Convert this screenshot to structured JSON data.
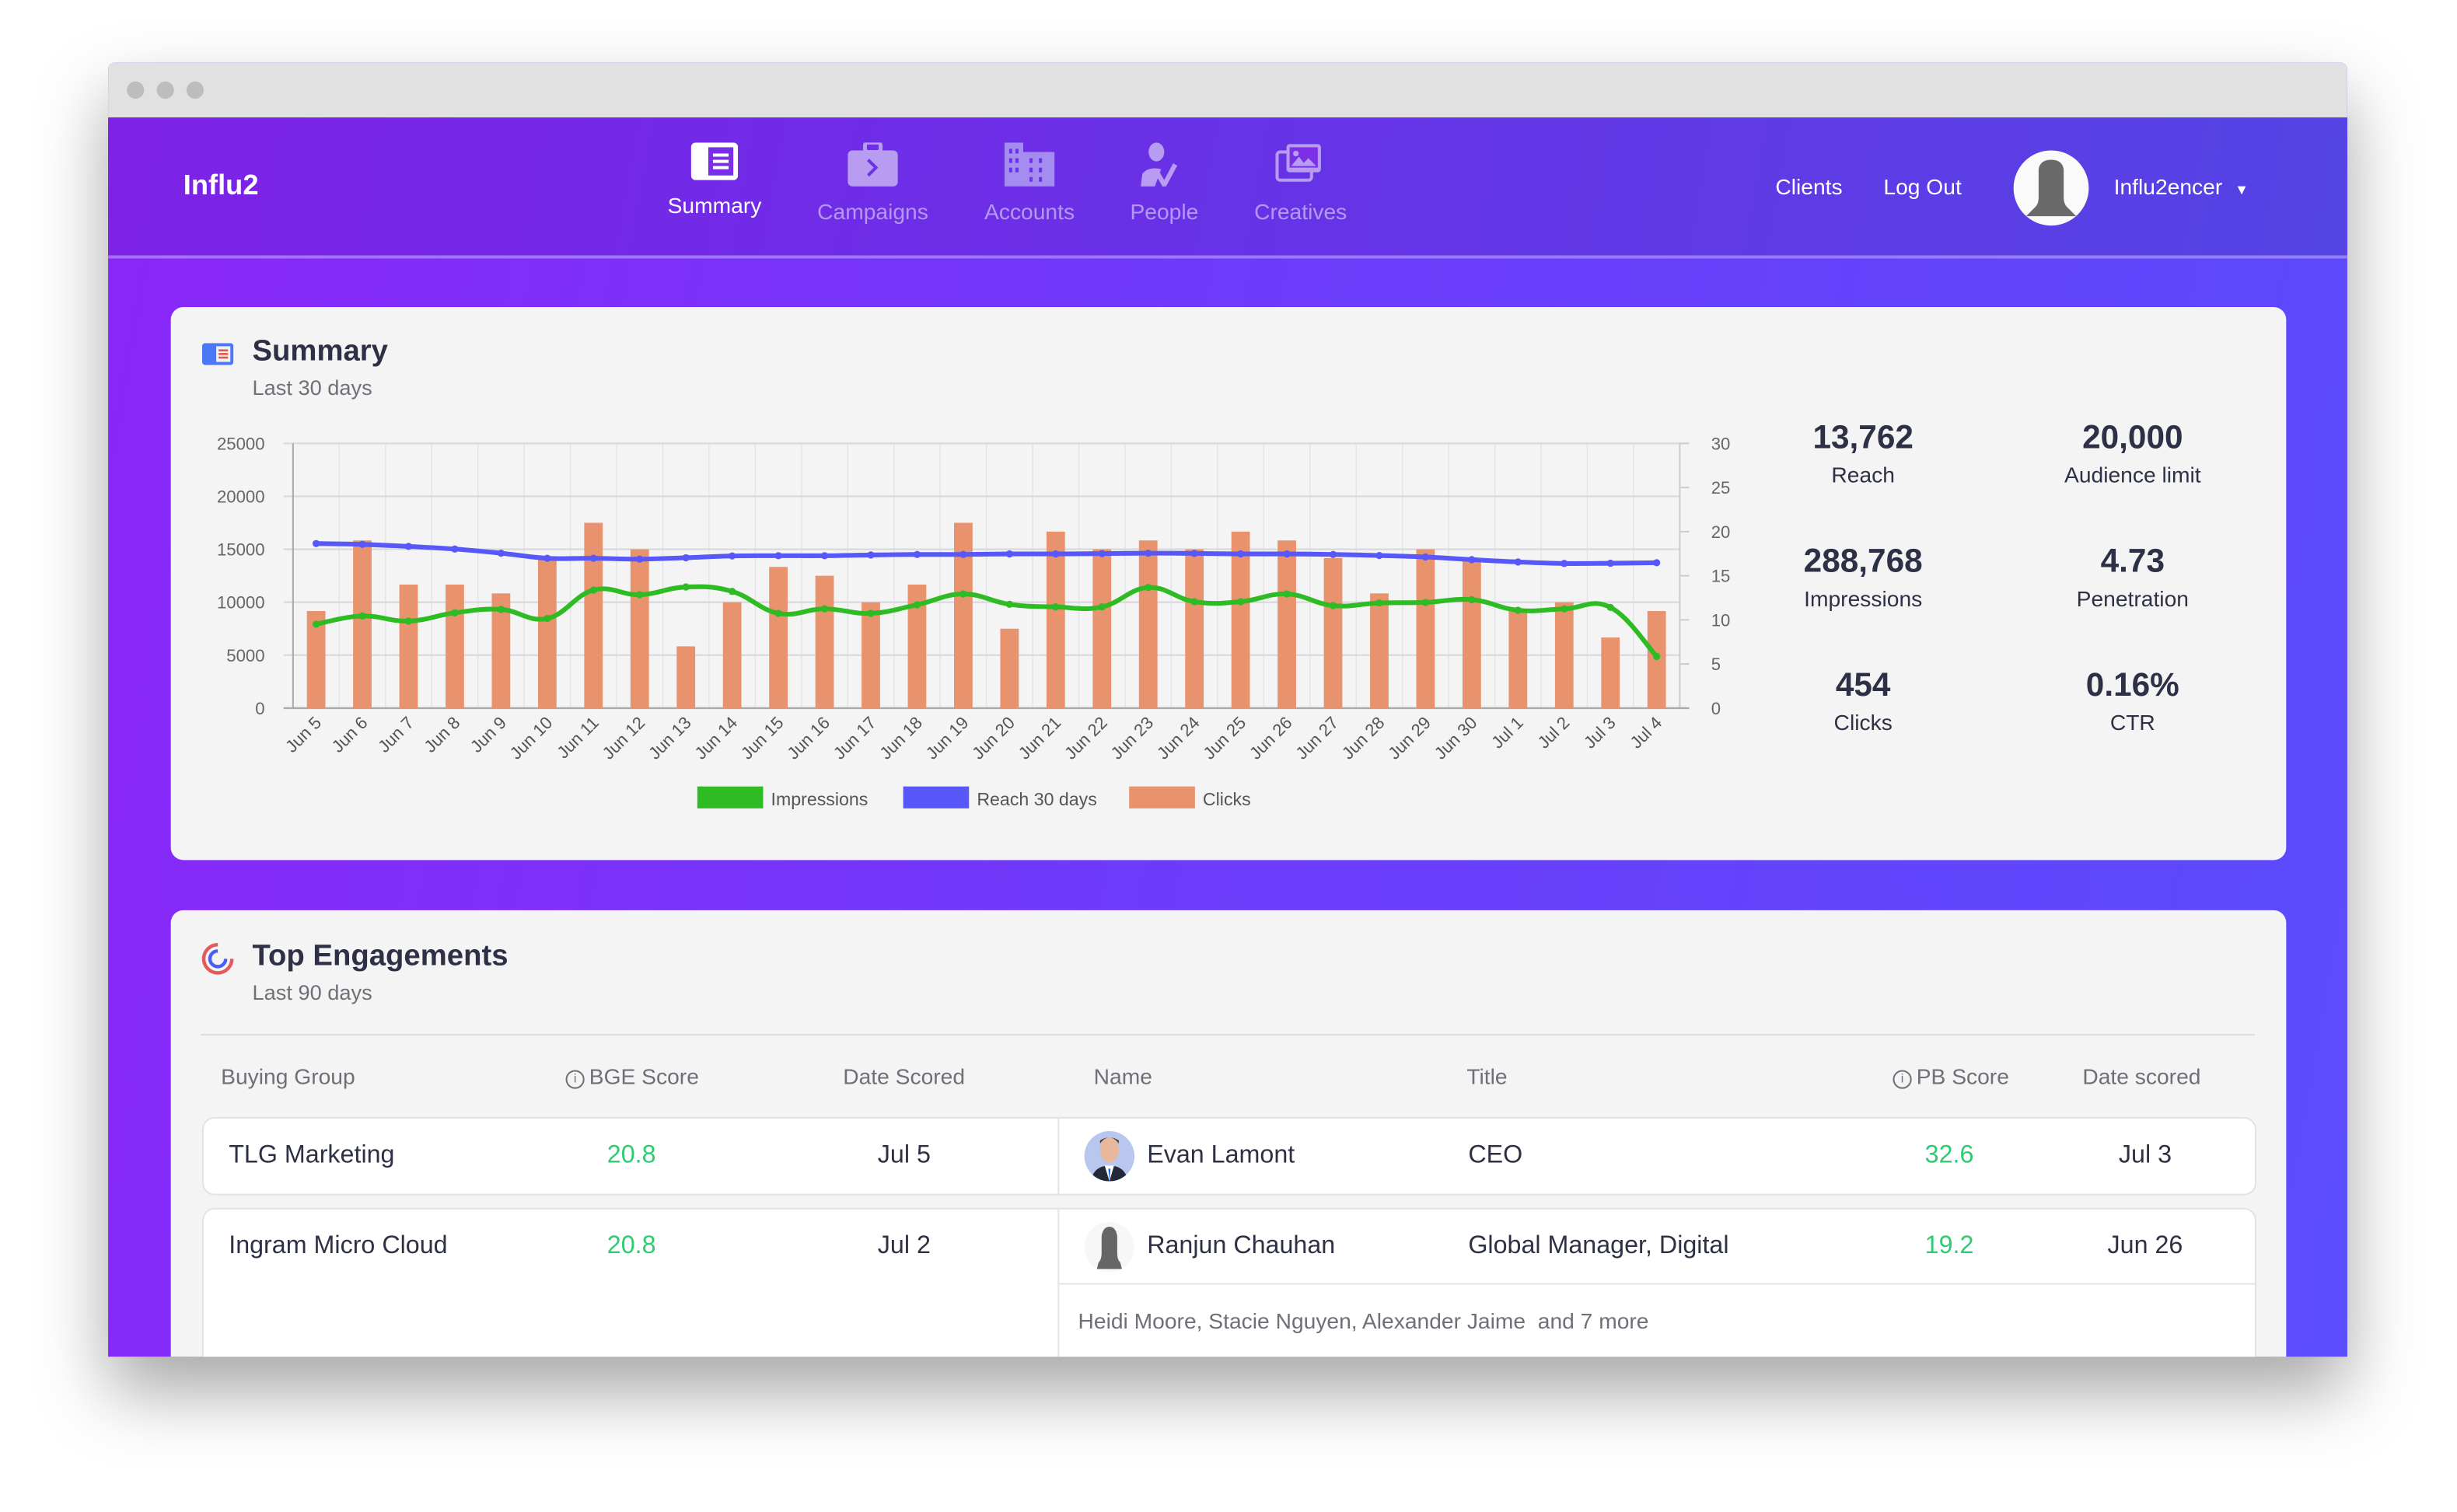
{
  "nav": {
    "logo": "Influ2",
    "items": [
      {
        "label": "Summary",
        "icon": "summary-icon",
        "active": true
      },
      {
        "label": "Campaigns",
        "icon": "briefcase-icon",
        "active": false
      },
      {
        "label": "Accounts",
        "icon": "building-icon",
        "active": false
      },
      {
        "label": "People",
        "icon": "person-check-icon",
        "active": false
      },
      {
        "label": "Creatives",
        "icon": "images-icon",
        "active": false
      }
    ],
    "clients": "Clients",
    "logout": "Log Out",
    "user": "Influ2encer"
  },
  "summary": {
    "title": "Summary",
    "subtitle": "Last 30 days",
    "stats": [
      {
        "value": "13,762",
        "label": "Reach"
      },
      {
        "value": "20,000",
        "label": "Audience limit"
      },
      {
        "value": "288,768",
        "label": "Impressions"
      },
      {
        "value": "4.73",
        "label": "Penetration"
      },
      {
        "value": "454",
        "label": "Clicks"
      },
      {
        "value": "0.16%",
        "label": "CTR"
      }
    ]
  },
  "chart_data": {
    "type": "bar",
    "categories": [
      "Jun 5",
      "Jun 6",
      "Jun 7",
      "Jun 8",
      "Jun 9",
      "Jun 10",
      "Jun 11",
      "Jun 12",
      "Jun 13",
      "Jun 14",
      "Jun 15",
      "Jun 16",
      "Jun 17",
      "Jun 18",
      "Jun 19",
      "Jun 20",
      "Jun 21",
      "Jun 22",
      "Jun 23",
      "Jun 24",
      "Jun 25",
      "Jun 26",
      "Jun 27",
      "Jun 28",
      "Jun 29",
      "Jun 30",
      "Jul 1",
      "Jul 2",
      "Jul 3",
      "Jul 4"
    ],
    "left_axis": {
      "ylim": [
        0,
        25000
      ],
      "ticks": [
        "25000",
        "20000",
        "15000",
        "10000",
        "5000",
        "0"
      ]
    },
    "right_axis": {
      "ylim": [
        0,
        30
      ],
      "ticks": [
        "30",
        "25",
        "20",
        "15",
        "10",
        "5",
        "0"
      ]
    },
    "grid": true,
    "legend_position": "bottom",
    "series": [
      {
        "name": "Impressions",
        "type": "line",
        "axis": "left",
        "color": "#2fbb23",
        "values": [
          7930,
          8700,
          8220,
          9000,
          9320,
          8460,
          11150,
          10710,
          11440,
          11020,
          8950,
          9370,
          8950,
          9760,
          10780,
          9800,
          9560,
          9560,
          11390,
          10050,
          10050,
          10780,
          9680,
          9930,
          9980,
          10240,
          9240,
          9370,
          9510,
          4880
        ]
      },
      {
        "name": "Reach 30 days",
        "type": "line",
        "axis": "left",
        "color": "#5858f8",
        "values": [
          15540,
          15460,
          15270,
          15020,
          14630,
          14150,
          14150,
          14070,
          14200,
          14370,
          14390,
          14390,
          14460,
          14510,
          14510,
          14560,
          14560,
          14590,
          14630,
          14610,
          14560,
          14560,
          14510,
          14410,
          14270,
          14020,
          13800,
          13660,
          13680,
          13730
        ]
      },
      {
        "name": "Clicks",
        "type": "bar",
        "axis": "right",
        "color": "#e8926e",
        "values": [
          11,
          19,
          14,
          14,
          13,
          17,
          21,
          18,
          7,
          12,
          16,
          15,
          12,
          14,
          21,
          9,
          20,
          18,
          19,
          18,
          20,
          19,
          17,
          13,
          18,
          17,
          11,
          12,
          8,
          11
        ]
      }
    ]
  },
  "engagements": {
    "title": "Top Engagements",
    "subtitle": "Last 90 days",
    "headers": {
      "buying_group": "Buying Group",
      "bge_score": "BGE Score",
      "date_scored": "Date Scored",
      "name": "Name",
      "title": "Title",
      "pb_score": "PB Score",
      "date_scored2": "Date scored"
    },
    "rows": [
      {
        "group": "TLG Marketing",
        "bge": "20.8",
        "date": "Jul 5",
        "name": "Evan Lamont",
        "title": "CEO",
        "pb": "32.6",
        "pdate": "Jul 3"
      },
      {
        "group": "Ingram Micro Cloud",
        "bge": "20.8",
        "date": "Jul 2",
        "name": "Ranjun Chauhan",
        "title": "Global Manager, Digital",
        "pb": "19.2",
        "pdate": "Jun 26",
        "more": "Heidi Moore, Stacie Nguyen, Alexander Jaime  and 7 more"
      }
    ]
  }
}
